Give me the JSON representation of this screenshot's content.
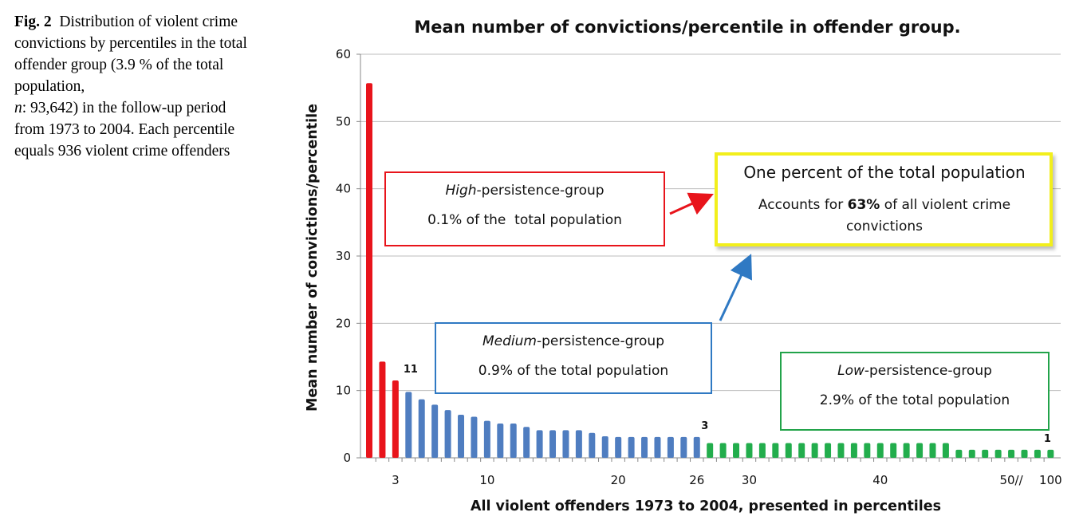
{
  "caption": {
    "fig_label": "Fig. 2",
    "text_before_n": "Distribution of violent crime convictions by percentiles in the total offender group (3.9 % of the total population,",
    "n_italic": "n",
    "text_after_n": ": 93,642) in the follow-up period from 1973 to 2004. Each percentile equals 936 violent crime offenders"
  },
  "chart_data": {
    "type": "bar",
    "title": "Mean number of convictions/percentile in offender group.",
    "xlabel": "All violent offenders 1973 to 2004, presented in percentiles",
    "ylabel": "Mean number of convictions/percentile",
    "ylim": [
      0,
      60
    ],
    "yticks": [
      "0",
      "10",
      "20",
      "30",
      "40",
      "50",
      "60"
    ],
    "grid": true,
    "colors": {
      "high": "#e8141b",
      "medium": "#4f7dc0",
      "low": "#22ad4c"
    },
    "x_tick_labels": [
      {
        "index": 3,
        "label": "3"
      },
      {
        "index": 10,
        "label": "10"
      },
      {
        "index": 20,
        "label": "20"
      },
      {
        "index": 26,
        "label": "26"
      },
      {
        "index": 30,
        "label": "30"
      },
      {
        "index": 40,
        "label": "40"
      },
      {
        "index": 50,
        "label": "50//"
      },
      {
        "index": 53,
        "label": "100"
      }
    ],
    "series": [
      {
        "name": "High-persistence-group",
        "color": "high",
        "values": [
          55.7,
          14.3,
          11.5
        ]
      },
      {
        "name": "Medium-persistence-group",
        "color": "medium",
        "values": [
          9.8,
          8.7,
          7.9,
          7.1,
          6.4,
          6.1,
          5.5,
          5.1,
          5.1,
          4.6,
          4.1,
          4.1,
          4.1,
          4.1,
          3.7,
          3.2,
          3.1,
          3.1,
          3.1,
          3.1,
          3.1,
          3.1,
          3.1
        ]
      },
      {
        "name": "Low-persistence-group",
        "color": "low",
        "values": [
          2.2,
          2.2,
          2.2,
          2.2,
          2.2,
          2.2,
          2.2,
          2.2,
          2.2,
          2.2,
          2.2,
          2.2,
          2.2,
          2.2,
          2.2,
          2.2,
          2.2,
          2.2,
          2.2,
          1.2,
          1.2,
          1.2,
          1.2,
          1.2,
          1.2,
          1.2,
          1.2
        ]
      }
    ],
    "data_labels": [
      {
        "index": 3,
        "label": "11"
      },
      {
        "index": 26,
        "label": "3"
      },
      {
        "index": 53,
        "label": "1"
      }
    ]
  },
  "annotations": {
    "high_box": {
      "title_italic": "High",
      "title_rest": "-persistence-group",
      "text": "0.1% of the  total population",
      "color": "#e8141b"
    },
    "medium_box": {
      "title_italic": "Medium",
      "title_rest": "-persistence-group",
      "text": "0.9% of the total population",
      "color": "#2f79c3"
    },
    "low_box": {
      "title_italic": "Low",
      "title_rest": "-persistence-group",
      "text": "2.9% of the total population",
      "color": "#22a34a"
    },
    "one_percent_box": {
      "title": "One percent of the total population",
      "line1_before": "Accounts for ",
      "line1_bold": "63%",
      "line1_after": " of all violent crime",
      "line2": "convictions",
      "border_color": "#f2ef1c"
    }
  }
}
